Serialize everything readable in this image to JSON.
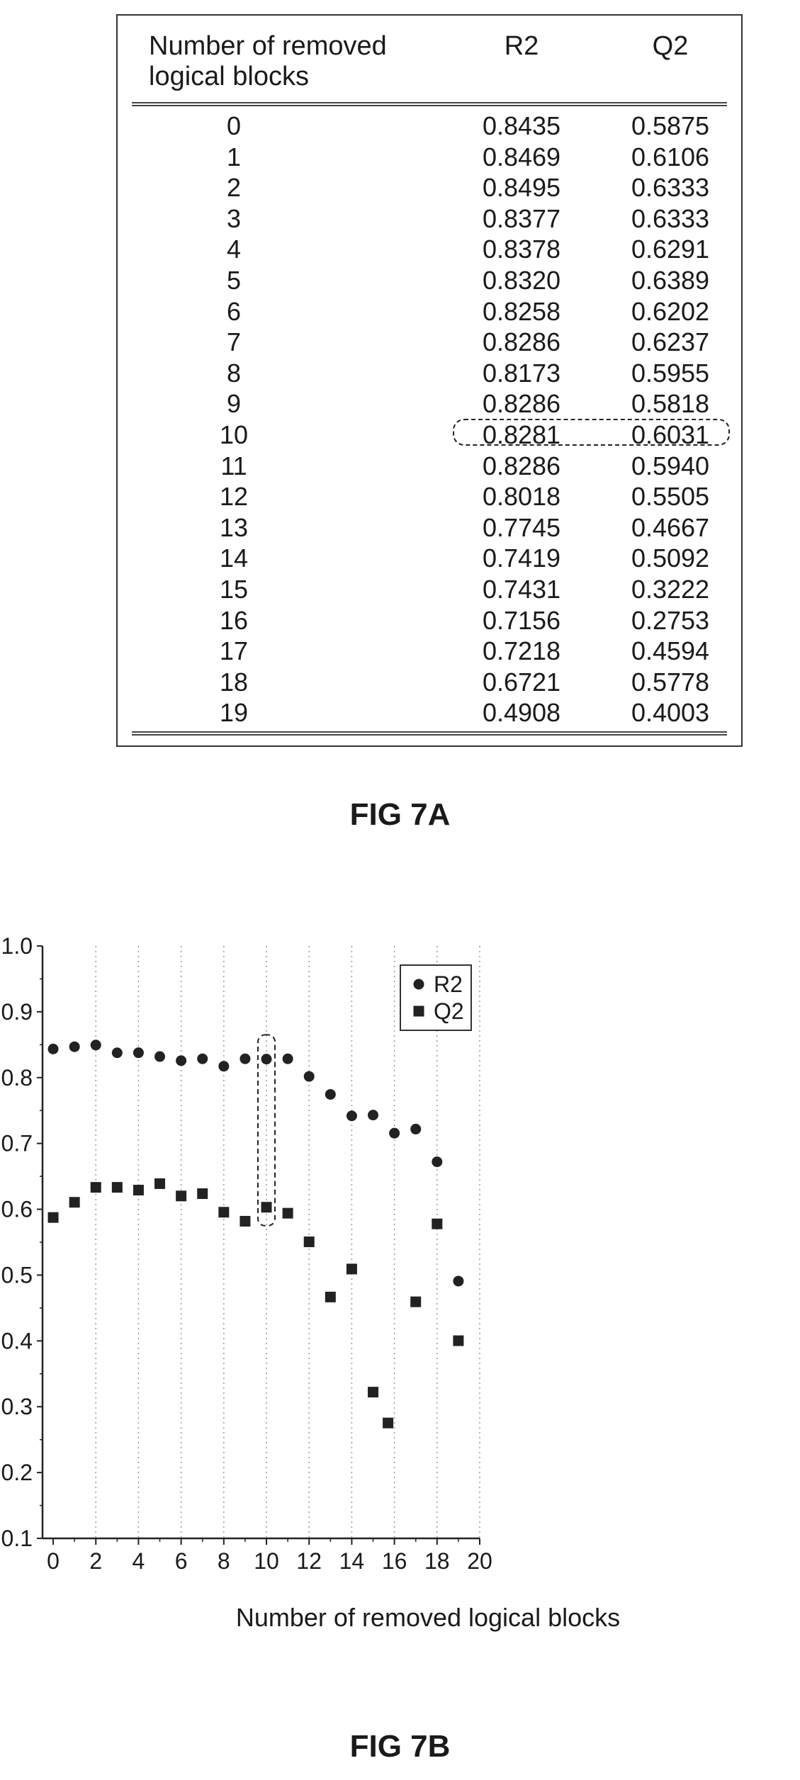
{
  "figure_a": {
    "caption": "FIG 7A",
    "headers": [
      "Number of removed\nlogical blocks",
      "R2",
      "Q2"
    ],
    "rows": [
      [
        "0",
        "0.8435",
        "0.5875"
      ],
      [
        "1",
        "0.8469",
        "0.6106"
      ],
      [
        "2",
        "0.8495",
        "0.6333"
      ],
      [
        "3",
        "0.8377",
        "0.6333"
      ],
      [
        "4",
        "0.8378",
        "0.6291"
      ],
      [
        "5",
        "0.8320",
        "0.6389"
      ],
      [
        "6",
        "0.8258",
        "0.6202"
      ],
      [
        "7",
        "0.8286",
        "0.6237"
      ],
      [
        "8",
        "0.8173",
        "0.5955"
      ],
      [
        "9",
        "0.8286",
        "0.5818"
      ],
      [
        "10",
        "0.8281",
        "0.6031"
      ],
      [
        "11",
        "0.8286",
        "0.5940"
      ],
      [
        "12",
        "0.8018",
        "0.5505"
      ],
      [
        "13",
        "0.7745",
        "0.4667"
      ],
      [
        "14",
        "0.7419",
        "0.5092"
      ],
      [
        "15",
        "0.7431",
        "0.3222"
      ],
      [
        "16",
        "0.7156",
        "0.2753"
      ],
      [
        "17",
        "0.7218",
        "0.4594"
      ],
      [
        "18",
        "0.6721",
        "0.5778"
      ],
      [
        "19",
        "0.4908",
        "0.4003"
      ]
    ],
    "highlighted_row": "10"
  },
  "figure_b": {
    "caption": "FIG 7B"
  },
  "chart_data": {
    "type": "scatter",
    "title": "",
    "xlabel": "Number of removed logical blocks",
    "ylabel": "",
    "xlim": [
      -0.5,
      20
    ],
    "ylim": [
      0.1,
      1.0
    ],
    "x_ticks": [
      "0",
      "2",
      "4",
      "6",
      "8",
      "10",
      "12",
      "14",
      "16",
      "18",
      "20"
    ],
    "y_ticks": [
      "0.1",
      "0.2",
      "0.3",
      "0.4",
      "0.5",
      "0.6",
      "0.7",
      "0.8",
      "0.9",
      "1.0"
    ],
    "grid": "vertical dotted lines",
    "legend_position": "top-right",
    "highlighted_x": 10,
    "series": [
      {
        "name": "R2",
        "marker": "circle",
        "color": "#222222",
        "points": [
          [
            0,
            0.8435
          ],
          [
            1,
            0.8469
          ],
          [
            2,
            0.8495
          ],
          [
            3,
            0.8377
          ],
          [
            4,
            0.8378
          ],
          [
            5,
            0.832
          ],
          [
            6,
            0.8258
          ],
          [
            7,
            0.8286
          ],
          [
            8,
            0.8173
          ],
          [
            9,
            0.8286
          ],
          [
            10,
            0.8281
          ],
          [
            11,
            0.8286
          ],
          [
            12,
            0.8018
          ],
          [
            13,
            0.7745
          ],
          [
            14,
            0.7419
          ],
          [
            15,
            0.7431
          ],
          [
            16,
            0.7156
          ],
          [
            17,
            0.7218
          ],
          [
            18,
            0.6721
          ],
          [
            19,
            0.4908
          ]
        ]
      },
      {
        "name": "Q2",
        "marker": "square",
        "color": "#222222",
        "points": [
          [
            0,
            0.5875
          ],
          [
            1,
            0.6106
          ],
          [
            2,
            0.6333
          ],
          [
            3,
            0.6333
          ],
          [
            4,
            0.6291
          ],
          [
            5,
            0.6389
          ],
          [
            6,
            0.6202
          ],
          [
            7,
            0.6237
          ],
          [
            8,
            0.5955
          ],
          [
            9,
            0.5818
          ],
          [
            10,
            0.6031
          ],
          [
            11,
            0.594
          ],
          [
            12,
            0.5505
          ],
          [
            13,
            0.4667
          ],
          [
            14,
            0.5092
          ],
          [
            15,
            0.3222
          ],
          [
            15.7,
            0.2753
          ],
          [
            17,
            0.4594
          ],
          [
            18,
            0.5778
          ],
          [
            19,
            0.4003
          ]
        ]
      }
    ]
  }
}
